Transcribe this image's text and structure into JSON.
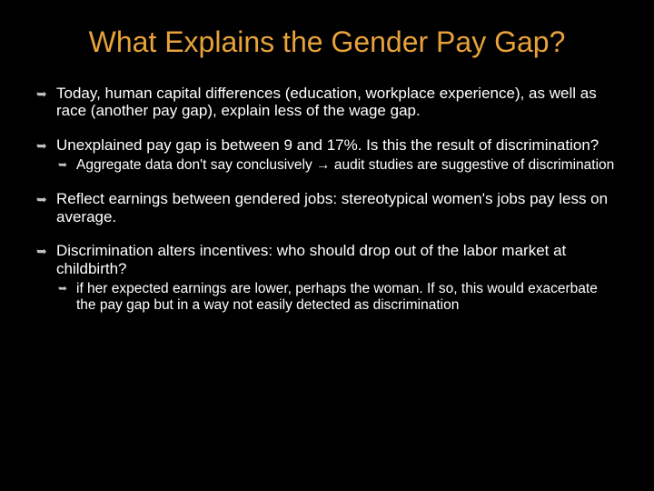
{
  "title": "What Explains the Gender Pay Gap?",
  "bullets": [
    {
      "text": "Today, human capital differences (education, workplace experience), as well as race (another pay gap), explain less of the wage gap."
    },
    {
      "text": "Unexplained pay gap is between 9 and 17%.  Is this the result of discrimination?",
      "sub": [
        "Aggregate data don't say conclusively → audit studies are suggestive of discrimination"
      ]
    },
    {
      "text": "Reflect earnings between gendered jobs: stereotypical women's jobs pay less on average."
    },
    {
      "text": "Discrimination alters incentives: who should drop out of the labor market at childbirth?",
      "sub": [
        "if her expected earnings are lower, perhaps the woman.  If so, this would exacerbate the pay gap but in a way not easily detected as discrimination"
      ]
    }
  ],
  "colors": {
    "background": "#000000",
    "title_color": "#e8a23a",
    "text_color": "#ffffff",
    "bullet_icon_color": "#c0c0c0"
  },
  "typography": {
    "title_fontsize": 32,
    "body_fontsize": 17,
    "sub_fontsize": 15.5,
    "font_family": "Arial"
  },
  "bullet_glyph": "➥",
  "sub_bullet_glyph": "➥"
}
